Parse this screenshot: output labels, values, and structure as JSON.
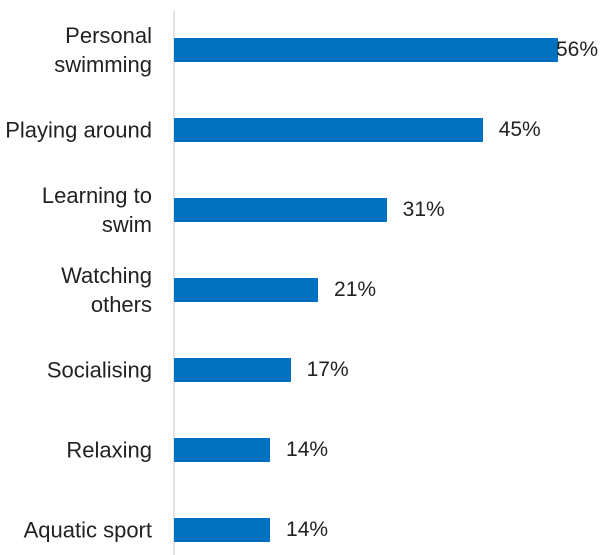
{
  "chart_data": {
    "type": "bar",
    "orientation": "horizontal",
    "categories": [
      "Personal swimming",
      "Playing around",
      "Learning to swim",
      "Watching others",
      "Socialising",
      "Relaxing",
      "Aquatic sport"
    ],
    "values": [
      56,
      45,
      31,
      21,
      17,
      14,
      14
    ],
    "value_labels": [
      "56%",
      "45%",
      "31%",
      "21%",
      "17%",
      "14%",
      "14%"
    ],
    "color": "#0070c0"
  }
}
